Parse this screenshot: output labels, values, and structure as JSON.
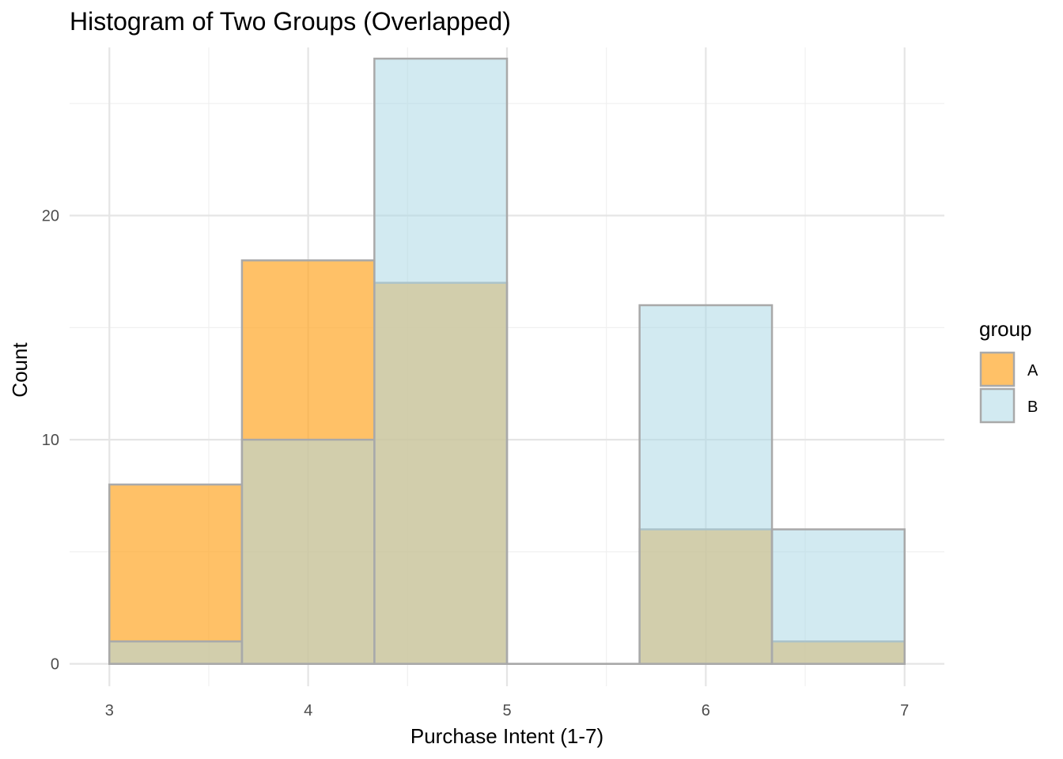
{
  "chart_data": {
    "type": "histogram",
    "title": "Histogram of Two Groups (Overlapped)",
    "xlabel": "Purchase Intent (1-7)",
    "ylabel": "Count",
    "xlim": [
      2.8,
      7.2
    ],
    "ylim": [
      -1,
      27.5
    ],
    "x_ticks": [
      3,
      4,
      5,
      6,
      7
    ],
    "y_ticks": [
      0,
      10,
      20
    ],
    "grid": true,
    "legend": {
      "title": "group",
      "position": "right"
    },
    "bin_edges": [
      3,
      3.667,
      4.333,
      5,
      5.667,
      6.333,
      7
    ],
    "series": [
      {
        "name": "A",
        "color": "#FFA726",
        "opacity": 0.7,
        "values": [
          8,
          18,
          17,
          0,
          6,
          1
        ]
      },
      {
        "name": "B",
        "color": "#ADD8E6",
        "opacity": 0.55,
        "values": [
          1,
          10,
          27,
          0,
          16,
          6
        ]
      }
    ],
    "bar_outline_color": "#A9A9A9"
  }
}
